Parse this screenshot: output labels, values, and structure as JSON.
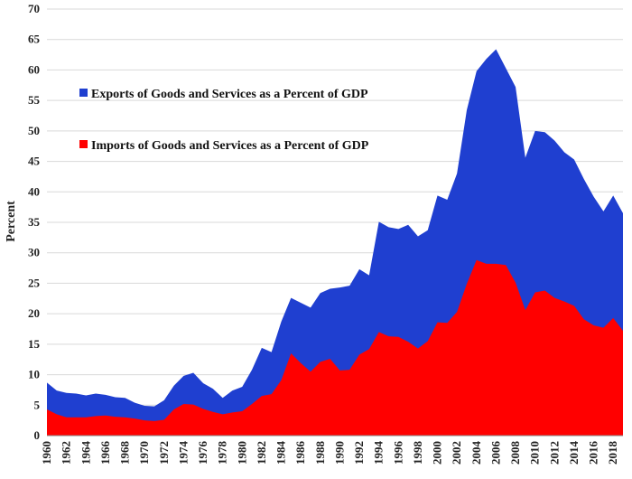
{
  "chart_data": {
    "type": "area",
    "ylabel": "Percent",
    "ylim": [
      0,
      70
    ],
    "yticks": [
      0,
      5,
      10,
      15,
      20,
      25,
      30,
      35,
      40,
      45,
      50,
      55,
      60,
      65,
      70
    ],
    "grid": true,
    "legend_position": "upper-left",
    "x": [
      1960,
      1961,
      1962,
      1963,
      1964,
      1965,
      1966,
      1967,
      1968,
      1969,
      1970,
      1971,
      1972,
      1973,
      1974,
      1975,
      1976,
      1977,
      1978,
      1979,
      1980,
      1981,
      1982,
      1983,
      1984,
      1985,
      1986,
      1987,
      1988,
      1989,
      1990,
      1991,
      1992,
      1993,
      1994,
      1995,
      1996,
      1997,
      1998,
      1999,
      2000,
      2001,
      2002,
      2003,
      2004,
      2005,
      2006,
      2007,
      2008,
      2009,
      2010,
      2011,
      2012,
      2013,
      2014,
      2015,
      2016,
      2017,
      2018,
      2019
    ],
    "xtick_labels": [
      "1960",
      "1962",
      "1964",
      "1966",
      "1968",
      "1970",
      "1972",
      "1974",
      "1976",
      "1978",
      "1980",
      "1982",
      "1984",
      "1986",
      "1988",
      "1990",
      "1992",
      "1994",
      "1996",
      "1998",
      "2000",
      "2002",
      "2004",
      "2006",
      "2008",
      "2010",
      "2012",
      "2014",
      "2016",
      "2018"
    ],
    "series": [
      {
        "name": "Exports of Goods and Services as a Percent of GDP",
        "color": "#1f3fd0",
        "values": [
          8.7,
          7.4,
          7.0,
          6.9,
          6.6,
          6.9,
          6.7,
          6.3,
          6.2,
          5.4,
          4.9,
          4.8,
          5.8,
          8.2,
          9.8,
          10.3,
          8.6,
          7.7,
          6.2,
          7.4,
          8.0,
          10.8,
          14.4,
          13.7,
          18.7,
          22.6,
          21.8,
          21.0,
          23.4,
          24.1,
          24.3,
          24.6,
          27.3,
          26.3,
          35.1,
          34.2,
          33.9,
          34.6,
          32.7,
          33.7,
          39.4,
          38.7,
          43.0,
          53.4,
          59.8,
          61.8,
          63.4,
          60.3,
          57.2,
          45.6,
          50.0,
          49.8,
          48.4,
          46.5,
          45.3,
          42.1,
          39.2,
          36.8,
          39.4,
          36.5
        ]
      },
      {
        "name": "Imports of Goods and Services as a Percent of GDP",
        "color": "#ff0000",
        "values": [
          4.3,
          3.5,
          3.0,
          3.0,
          3.0,
          3.2,
          3.3,
          3.1,
          3.0,
          2.8,
          2.5,
          2.4,
          2.6,
          4.3,
          5.2,
          5.1,
          4.4,
          3.9,
          3.5,
          3.8,
          4.0,
          5.2,
          6.5,
          6.8,
          9.1,
          13.5,
          11.9,
          10.5,
          12.1,
          12.6,
          10.7,
          10.8,
          13.3,
          14.2,
          17.0,
          16.3,
          16.2,
          15.4,
          14.3,
          15.5,
          18.6,
          18.5,
          20.3,
          24.9,
          28.8,
          28.2,
          28.2,
          28.0,
          25.1,
          20.6,
          23.5,
          23.8,
          22.6,
          22.0,
          21.3,
          19.1,
          18.1,
          17.7,
          19.3,
          17.2
        ]
      }
    ]
  }
}
